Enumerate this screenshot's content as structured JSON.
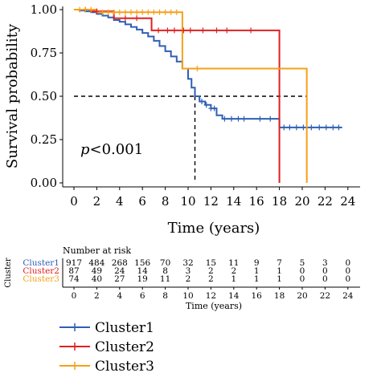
{
  "chart_data": {
    "type": "line",
    "subtype": "kaplan-meier",
    "xlabel": "Time (years)",
    "ylabel": "Survival probability",
    "xlim": [
      0,
      24
    ],
    "ylim": [
      0,
      1
    ],
    "xticks": [
      "0",
      "2",
      "4",
      "6",
      "8",
      "10",
      "12",
      "14",
      "16",
      "18",
      "20",
      "22",
      "24"
    ],
    "yticks": [
      "0.00",
      "0.25",
      "0.50",
      "0.75",
      "1.00"
    ],
    "annotation": "p<0.001",
    "annotation_italic_part": "p",
    "annotation_rest": "<0.001",
    "median_line_y": 0.5,
    "median_times": [
      10.6,
      18.0,
      20.4
    ],
    "series": [
      {
        "name": "Cluster1",
        "color": "#2f5fb5",
        "steps": [
          [
            0,
            1.0
          ],
          [
            0.5,
            0.995
          ],
          [
            1,
            0.99
          ],
          [
            1.5,
            0.985
          ],
          [
            2,
            0.975
          ],
          [
            2.5,
            0.965
          ],
          [
            3,
            0.955
          ],
          [
            3.5,
            0.94
          ],
          [
            4,
            0.93
          ],
          [
            4.5,
            0.915
          ],
          [
            5,
            0.9
          ],
          [
            5.5,
            0.885
          ],
          [
            6,
            0.865
          ],
          [
            6.5,
            0.845
          ],
          [
            7,
            0.82
          ],
          [
            7.5,
            0.79
          ],
          [
            8,
            0.76
          ],
          [
            8.5,
            0.73
          ],
          [
            9,
            0.7
          ],
          [
            9.5,
            0.66
          ],
          [
            10,
            0.6
          ],
          [
            10.3,
            0.55
          ],
          [
            10.6,
            0.5
          ],
          [
            11,
            0.47
          ],
          [
            11.5,
            0.45
          ],
          [
            12,
            0.43
          ],
          [
            12.5,
            0.39
          ],
          [
            13,
            0.37
          ],
          [
            14,
            0.37
          ],
          [
            16,
            0.37
          ],
          [
            17,
            0.37
          ],
          [
            18,
            0.32
          ],
          [
            23.5,
            0.32
          ]
        ],
        "censor_x": [
          11.2,
          11.6,
          12.0,
          12.3,
          13.2,
          13.8,
          14.4,
          14.9,
          16.3,
          17.2,
          18.4,
          18.9,
          19.5,
          20.1,
          20.8,
          21.5,
          22.1,
          22.7,
          23.2
        ]
      },
      {
        "name": "Cluster2",
        "color": "#e02020",
        "steps": [
          [
            0,
            1.0
          ],
          [
            1.5,
            0.99
          ],
          [
            3.5,
            0.95
          ],
          [
            6.8,
            0.88
          ],
          [
            18.0,
            0.88
          ],
          [
            18.0,
            0.0
          ]
        ],
        "censor_x": [
          1.0,
          2.0,
          4.5,
          5.5,
          7.4,
          8.2,
          8.8,
          9.6,
          10.2,
          11.3,
          12.5,
          13.4,
          15.5
        ]
      },
      {
        "name": "Cluster3",
        "color": "#f5a01a",
        "steps": [
          [
            0,
            1.0
          ],
          [
            2.0,
            0.985
          ],
          [
            9.5,
            0.985
          ],
          [
            9.5,
            0.66
          ],
          [
            20.4,
            0.66
          ],
          [
            20.4,
            0.0
          ]
        ],
        "censor_x": [
          0.5,
          1.0,
          1.5,
          2.5,
          3.0,
          3.5,
          4.0,
          4.5,
          5.0,
          5.5,
          6.0,
          6.5,
          7.0,
          7.5,
          8.0,
          8.5,
          9.0,
          10.8
        ]
      }
    ]
  },
  "risk_table": {
    "title": "Number at risk",
    "ylabel": "Cluster",
    "xlabel": "Time (years)",
    "x_ticks": [
      "0",
      "2",
      "4",
      "6",
      "8",
      "10",
      "12",
      "14",
      "16",
      "18",
      "20",
      "22",
      "24"
    ],
    "rows": [
      {
        "label": "Cluster1",
        "color": "#2f5fb5",
        "values": [
          "917",
          "484",
          "268",
          "156",
          "70",
          "32",
          "15",
          "11",
          "9",
          "7",
          "5",
          "3",
          "0"
        ]
      },
      {
        "label": "Cluster2",
        "color": "#e02020",
        "values": [
          "87",
          "49",
          "24",
          "14",
          "8",
          "3",
          "2",
          "2",
          "1",
          "1",
          "0",
          "0",
          "0"
        ]
      },
      {
        "label": "Cluster3",
        "color": "#f5a01a",
        "values": [
          "74",
          "40",
          "27",
          "19",
          "11",
          "2",
          "2",
          "1",
          "1",
          "1",
          "0",
          "0",
          "0"
        ]
      }
    ]
  },
  "legend": {
    "items": [
      {
        "label": "Cluster1",
        "color": "#2f5fb5"
      },
      {
        "label": "Cluster2",
        "color": "#e02020"
      },
      {
        "label": "Cluster3",
        "color": "#f5a01a"
      }
    ]
  }
}
